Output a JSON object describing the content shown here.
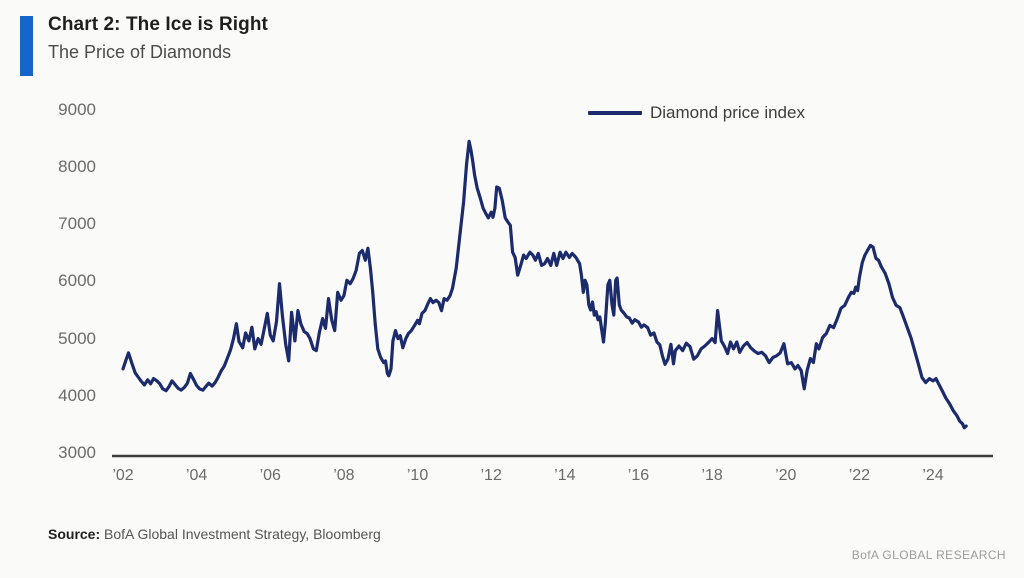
{
  "header": {
    "title": "Chart 2: The Ice is Right",
    "subtitle": "The Price of Diamonds"
  },
  "legend": {
    "label": "Diamond price index"
  },
  "footer": {
    "source_label": "Source:",
    "source_text": " BofA Global Investment Strategy, Bloomberg",
    "branding": "BofA GLOBAL RESEARCH"
  },
  "colors": {
    "accent_bar": "#1565cb",
    "line": "#1b2b6b",
    "axis": "#3f3f3f",
    "tick_label": "#6b6b6b"
  },
  "chart_data": {
    "type": "line",
    "title": "Chart 2: The Ice is Right",
    "subtitle": "The Price of Diamonds",
    "xlabel": "",
    "ylabel": "",
    "xlim": [
      2002,
      2025
    ],
    "ylim": [
      3000,
      9000
    ],
    "grid": false,
    "legend_position": "top-center",
    "y_ticks": [
      9000,
      8000,
      7000,
      6000,
      5000,
      4000,
      3000
    ],
    "x_ticks": [
      {
        "label": "’02",
        "year": 2002
      },
      {
        "label": "’04",
        "year": 2004
      },
      {
        "label": "’06",
        "year": 2006
      },
      {
        "label": "’08",
        "year": 2008
      },
      {
        "label": "’10",
        "year": 2010
      },
      {
        "label": "’12",
        "year": 2012
      },
      {
        "label": "’14",
        "year": 2014
      },
      {
        "label": "’16",
        "year": 2016
      },
      {
        "label": "’18",
        "year": 2018
      },
      {
        "label": "’20",
        "year": 2020
      },
      {
        "label": "’22",
        "year": 2022
      },
      {
        "label": "’24",
        "year": 2024
      }
    ],
    "series": [
      {
        "name": "Diamond price index",
        "color": "#1b2b6b",
        "points": [
          [
            2002.0,
            4470
          ],
          [
            2002.08,
            4620
          ],
          [
            2002.15,
            4750
          ],
          [
            2002.25,
            4550
          ],
          [
            2002.33,
            4400
          ],
          [
            2002.42,
            4320
          ],
          [
            2002.5,
            4250
          ],
          [
            2002.58,
            4190
          ],
          [
            2002.67,
            4280
          ],
          [
            2002.75,
            4210
          ],
          [
            2002.83,
            4300
          ],
          [
            2002.92,
            4260
          ],
          [
            2003.0,
            4210
          ],
          [
            2003.08,
            4120
          ],
          [
            2003.17,
            4090
          ],
          [
            2003.25,
            4160
          ],
          [
            2003.33,
            4260
          ],
          [
            2003.42,
            4190
          ],
          [
            2003.5,
            4130
          ],
          [
            2003.58,
            4100
          ],
          [
            2003.67,
            4150
          ],
          [
            2003.75,
            4220
          ],
          [
            2003.83,
            4390
          ],
          [
            2003.92,
            4280
          ],
          [
            2004.0,
            4180
          ],
          [
            2004.08,
            4120
          ],
          [
            2004.17,
            4100
          ],
          [
            2004.25,
            4160
          ],
          [
            2004.33,
            4220
          ],
          [
            2004.42,
            4170
          ],
          [
            2004.5,
            4230
          ],
          [
            2004.58,
            4320
          ],
          [
            2004.67,
            4440
          ],
          [
            2004.75,
            4520
          ],
          [
            2004.83,
            4650
          ],
          [
            2004.92,
            4800
          ],
          [
            2005.0,
            5000
          ],
          [
            2005.08,
            5260
          ],
          [
            2005.15,
            4950
          ],
          [
            2005.25,
            4840
          ],
          [
            2005.33,
            5100
          ],
          [
            2005.42,
            4960
          ],
          [
            2005.5,
            5200
          ],
          [
            2005.58,
            4820
          ],
          [
            2005.67,
            5000
          ],
          [
            2005.75,
            4900
          ],
          [
            2005.83,
            5150
          ],
          [
            2005.92,
            5440
          ],
          [
            2006.0,
            5060
          ],
          [
            2006.08,
            4960
          ],
          [
            2006.17,
            5300
          ],
          [
            2006.25,
            5960
          ],
          [
            2006.33,
            5400
          ],
          [
            2006.42,
            4900
          ],
          [
            2006.5,
            4610
          ],
          [
            2006.58,
            5460
          ],
          [
            2006.67,
            4960
          ],
          [
            2006.75,
            5490
          ],
          [
            2006.83,
            5260
          ],
          [
            2006.92,
            5120
          ],
          [
            2007.0,
            5090
          ],
          [
            2007.08,
            5000
          ],
          [
            2007.17,
            4820
          ],
          [
            2007.25,
            4790
          ],
          [
            2007.33,
            5100
          ],
          [
            2007.42,
            5350
          ],
          [
            2007.5,
            5180
          ],
          [
            2007.58,
            5700
          ],
          [
            2007.67,
            5320
          ],
          [
            2007.75,
            5140
          ],
          [
            2007.83,
            5810
          ],
          [
            2007.92,
            5670
          ],
          [
            2008.0,
            5750
          ],
          [
            2008.08,
            6020
          ],
          [
            2008.17,
            5960
          ],
          [
            2008.25,
            6050
          ],
          [
            2008.33,
            6190
          ],
          [
            2008.42,
            6490
          ],
          [
            2008.5,
            6540
          ],
          [
            2008.58,
            6370
          ],
          [
            2008.65,
            6580
          ],
          [
            2008.72,
            6230
          ],
          [
            2008.78,
            5840
          ],
          [
            2008.85,
            5260
          ],
          [
            2008.92,
            4820
          ],
          [
            2009.0,
            4670
          ],
          [
            2009.08,
            4580
          ],
          [
            2009.13,
            4610
          ],
          [
            2009.18,
            4390
          ],
          [
            2009.22,
            4350
          ],
          [
            2009.28,
            4470
          ],
          [
            2009.33,
            4960
          ],
          [
            2009.4,
            5140
          ],
          [
            2009.47,
            5000
          ],
          [
            2009.53,
            5050
          ],
          [
            2009.6,
            4840
          ],
          [
            2009.68,
            5000
          ],
          [
            2009.75,
            5090
          ],
          [
            2009.83,
            5140
          ],
          [
            2009.92,
            5230
          ],
          [
            2010.0,
            5320
          ],
          [
            2010.05,
            5260
          ],
          [
            2010.12,
            5440
          ],
          [
            2010.2,
            5490
          ],
          [
            2010.28,
            5610
          ],
          [
            2010.35,
            5700
          ],
          [
            2010.42,
            5630
          ],
          [
            2010.5,
            5670
          ],
          [
            2010.58,
            5630
          ],
          [
            2010.65,
            5490
          ],
          [
            2010.72,
            5700
          ],
          [
            2010.8,
            5670
          ],
          [
            2010.88,
            5750
          ],
          [
            2010.95,
            5880
          ],
          [
            2011.05,
            6230
          ],
          [
            2011.15,
            6810
          ],
          [
            2011.25,
            7390
          ],
          [
            2011.33,
            8040
          ],
          [
            2011.4,
            8450
          ],
          [
            2011.45,
            8300
          ],
          [
            2011.5,
            8090
          ],
          [
            2011.55,
            7860
          ],
          [
            2011.62,
            7630
          ],
          [
            2011.7,
            7460
          ],
          [
            2011.78,
            7280
          ],
          [
            2011.85,
            7190
          ],
          [
            2011.92,
            7110
          ],
          [
            2012.0,
            7210
          ],
          [
            2012.05,
            7120
          ],
          [
            2012.1,
            7280
          ],
          [
            2012.15,
            7650
          ],
          [
            2012.22,
            7630
          ],
          [
            2012.3,
            7420
          ],
          [
            2012.38,
            7110
          ],
          [
            2012.45,
            7040
          ],
          [
            2012.52,
            6980
          ],
          [
            2012.58,
            6510
          ],
          [
            2012.65,
            6420
          ],
          [
            2012.72,
            6110
          ],
          [
            2012.8,
            6280
          ],
          [
            2012.88,
            6460
          ],
          [
            2012.95,
            6400
          ],
          [
            2013.05,
            6510
          ],
          [
            2013.13,
            6460
          ],
          [
            2013.2,
            6370
          ],
          [
            2013.28,
            6490
          ],
          [
            2013.37,
            6280
          ],
          [
            2013.45,
            6310
          ],
          [
            2013.53,
            6400
          ],
          [
            2013.62,
            6280
          ],
          [
            2013.7,
            6490
          ],
          [
            2013.78,
            6280
          ],
          [
            2013.87,
            6510
          ],
          [
            2013.95,
            6400
          ],
          [
            2014.03,
            6510
          ],
          [
            2014.12,
            6420
          ],
          [
            2014.2,
            6490
          ],
          [
            2014.3,
            6420
          ],
          [
            2014.4,
            6310
          ],
          [
            2014.45,
            6110
          ],
          [
            2014.5,
            5810
          ],
          [
            2014.55,
            6020
          ],
          [
            2014.6,
            5940
          ],
          [
            2014.65,
            5590
          ],
          [
            2014.7,
            5500
          ],
          [
            2014.75,
            5640
          ],
          [
            2014.8,
            5410
          ],
          [
            2014.85,
            5470
          ],
          [
            2014.9,
            5330
          ],
          [
            2014.95,
            5380
          ],
          [
            2015.05,
            4940
          ],
          [
            2015.1,
            5270
          ],
          [
            2015.17,
            5940
          ],
          [
            2015.22,
            6020
          ],
          [
            2015.28,
            5590
          ],
          [
            2015.33,
            5410
          ],
          [
            2015.38,
            6020
          ],
          [
            2015.42,
            6060
          ],
          [
            2015.48,
            5590
          ],
          [
            2015.53,
            5500
          ],
          [
            2015.6,
            5450
          ],
          [
            2015.68,
            5380
          ],
          [
            2015.75,
            5360
          ],
          [
            2015.83,
            5270
          ],
          [
            2015.9,
            5330
          ],
          [
            2016.0,
            5290
          ],
          [
            2016.08,
            5200
          ],
          [
            2016.15,
            5240
          ],
          [
            2016.25,
            5190
          ],
          [
            2016.33,
            5060
          ],
          [
            2016.42,
            5100
          ],
          [
            2016.5,
            4940
          ],
          [
            2016.58,
            4890
          ],
          [
            2016.65,
            4700
          ],
          [
            2016.72,
            4550
          ],
          [
            2016.8,
            4640
          ],
          [
            2016.88,
            4900
          ],
          [
            2016.95,
            4560
          ],
          [
            2017.0,
            4790
          ],
          [
            2017.1,
            4870
          ],
          [
            2017.2,
            4790
          ],
          [
            2017.3,
            4920
          ],
          [
            2017.4,
            4860
          ],
          [
            2017.5,
            4640
          ],
          [
            2017.6,
            4700
          ],
          [
            2017.7,
            4820
          ],
          [
            2017.8,
            4870
          ],
          [
            2017.9,
            4930
          ],
          [
            2018.0,
            5000
          ],
          [
            2018.08,
            4930
          ],
          [
            2018.15,
            5490
          ],
          [
            2018.25,
            4960
          ],
          [
            2018.33,
            4870
          ],
          [
            2018.42,
            4740
          ],
          [
            2018.5,
            4940
          ],
          [
            2018.58,
            4820
          ],
          [
            2018.67,
            4940
          ],
          [
            2018.75,
            4760
          ],
          [
            2018.85,
            4870
          ],
          [
            2018.95,
            4930
          ],
          [
            2019.05,
            4840
          ],
          [
            2019.15,
            4780
          ],
          [
            2019.25,
            4740
          ],
          [
            2019.35,
            4760
          ],
          [
            2019.45,
            4700
          ],
          [
            2019.55,
            4580
          ],
          [
            2019.65,
            4670
          ],
          [
            2019.75,
            4700
          ],
          [
            2019.85,
            4750
          ],
          [
            2019.95,
            4910
          ],
          [
            2020.05,
            4560
          ],
          [
            2020.15,
            4580
          ],
          [
            2020.25,
            4470
          ],
          [
            2020.33,
            4530
          ],
          [
            2020.42,
            4440
          ],
          [
            2020.5,
            4120
          ],
          [
            2020.58,
            4440
          ],
          [
            2020.67,
            4650
          ],
          [
            2020.75,
            4580
          ],
          [
            2020.83,
            4910
          ],
          [
            2020.9,
            4820
          ],
          [
            2021.0,
            5020
          ],
          [
            2021.1,
            5090
          ],
          [
            2021.2,
            5230
          ],
          [
            2021.3,
            5190
          ],
          [
            2021.4,
            5350
          ],
          [
            2021.5,
            5530
          ],
          [
            2021.6,
            5580
          ],
          [
            2021.7,
            5720
          ],
          [
            2021.78,
            5810
          ],
          [
            2021.85,
            5790
          ],
          [
            2021.9,
            5900
          ],
          [
            2021.95,
            5840
          ],
          [
            2022.0,
            6070
          ],
          [
            2022.08,
            6330
          ],
          [
            2022.15,
            6460
          ],
          [
            2022.22,
            6540
          ],
          [
            2022.3,
            6630
          ],
          [
            2022.37,
            6600
          ],
          [
            2022.45,
            6400
          ],
          [
            2022.52,
            6370
          ],
          [
            2022.6,
            6250
          ],
          [
            2022.7,
            6140
          ],
          [
            2022.8,
            5960
          ],
          [
            2022.9,
            5720
          ],
          [
            2023.0,
            5580
          ],
          [
            2023.1,
            5540
          ],
          [
            2023.2,
            5370
          ],
          [
            2023.3,
            5190
          ],
          [
            2023.4,
            5020
          ],
          [
            2023.5,
            4790
          ],
          [
            2023.6,
            4560
          ],
          [
            2023.7,
            4320
          ],
          [
            2023.8,
            4230
          ],
          [
            2023.9,
            4300
          ],
          [
            2024.0,
            4260
          ],
          [
            2024.08,
            4300
          ],
          [
            2024.15,
            4210
          ],
          [
            2024.25,
            4090
          ],
          [
            2024.35,
            3960
          ],
          [
            2024.45,
            3860
          ],
          [
            2024.55,
            3740
          ],
          [
            2024.65,
            3650
          ],
          [
            2024.72,
            3560
          ],
          [
            2024.8,
            3510
          ],
          [
            2024.85,
            3440
          ],
          [
            2024.9,
            3470
          ]
        ]
      }
    ]
  }
}
